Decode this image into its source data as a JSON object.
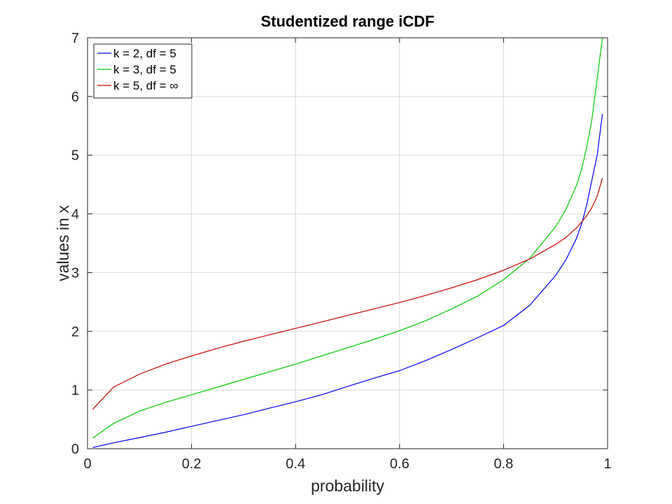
{
  "chart_data": {
    "type": "line",
    "title": "Studentized range iCDF",
    "xlabel": "probability",
    "ylabel": "values in x",
    "xlim": [
      0,
      1
    ],
    "ylim": [
      0,
      7
    ],
    "xticks": [
      0,
      0.2,
      0.4,
      0.6,
      0.8,
      1
    ],
    "xtick_labels": [
      "0",
      "0.2",
      "0.4",
      "0.6",
      "0.8",
      "1"
    ],
    "yticks": [
      0,
      1,
      2,
      3,
      4,
      5,
      6,
      7
    ],
    "ytick_labels": [
      "0",
      "1",
      "2",
      "3",
      "4",
      "5",
      "6",
      "7"
    ],
    "grid": true,
    "legend_position": "top-left",
    "x": [
      0.01,
      0.05,
      0.1,
      0.15,
      0.2,
      0.25,
      0.3,
      0.35,
      0.4,
      0.45,
      0.5,
      0.55,
      0.6,
      0.65,
      0.7,
      0.75,
      0.8,
      0.85,
      0.9,
      0.92,
      0.94,
      0.95,
      0.96,
      0.97,
      0.98,
      0.99
    ],
    "series": [
      {
        "name": "k = 2, df = 5",
        "color": "#0000ff",
        "values": [
          0.02,
          0.1,
          0.19,
          0.28,
          0.38,
          0.48,
          0.58,
          0.69,
          0.8,
          0.92,
          1.06,
          1.2,
          1.33,
          1.5,
          1.69,
          1.89,
          2.1,
          2.44,
          2.95,
          3.22,
          3.58,
          3.83,
          4.16,
          4.58,
          5.0,
          5.7
        ]
      },
      {
        "name": "k = 3, df = 5",
        "color": "#00cc00",
        "values": [
          0.18,
          0.43,
          0.64,
          0.79,
          0.92,
          1.05,
          1.18,
          1.31,
          1.44,
          1.58,
          1.72,
          1.86,
          2.01,
          2.18,
          2.38,
          2.6,
          2.88,
          3.24,
          3.78,
          4.08,
          4.48,
          4.76,
          5.14,
          5.62,
          6.3,
          7.0
        ]
      },
      {
        "name": "k = 5, df = ∞",
        "color": "#cc0000",
        "values": [
          0.67,
          1.05,
          1.27,
          1.44,
          1.58,
          1.71,
          1.83,
          1.94,
          2.05,
          2.16,
          2.27,
          2.38,
          2.49,
          2.61,
          2.74,
          2.88,
          3.04,
          3.23,
          3.48,
          3.6,
          3.76,
          3.86,
          3.97,
          4.11,
          4.3,
          4.61
        ]
      }
    ]
  }
}
